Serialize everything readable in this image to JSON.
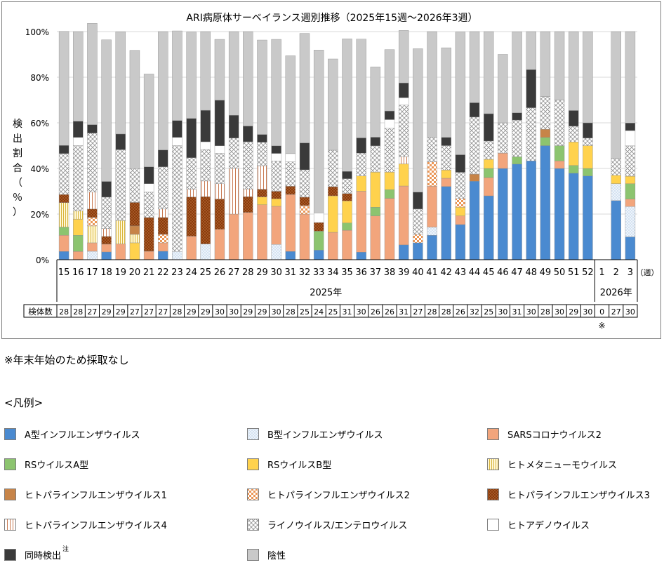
{
  "chart_data": {
    "type": "stacked_bar",
    "title": "ARI病原体サーベイランス週別推移（2025年15週～2026年3週）",
    "ylabel": "検出割合（％）",
    "xunit_label": "（週）",
    "ylim": [
      0,
      100
    ],
    "yticks": [
      "0%",
      "20%",
      "40%",
      "60%",
      "80%",
      "100%"
    ],
    "year_labels": [
      "2025年",
      "2026年"
    ],
    "count_row_label": "検体数",
    "weeks": [
      "15",
      "16",
      "17",
      "18",
      "19",
      "20",
      "21",
      "22",
      "23",
      "24",
      "25",
      "26",
      "27",
      "28",
      "29",
      "30",
      "31",
      "32",
      "33",
      "34",
      "35",
      "36",
      "37",
      "38",
      "39",
      "40",
      "41",
      "42",
      "43",
      "44",
      "45",
      "46",
      "47",
      "48",
      "49",
      "50",
      "51",
      "52",
      "1",
      "2",
      "3"
    ],
    "specimen_counts": [
      "28",
      "28",
      "27",
      "29",
      "29",
      "27",
      "27",
      "27",
      "28",
      "29",
      "29",
      "30",
      "30",
      "29",
      "29",
      "30",
      "28",
      "25",
      "24",
      "25",
      "31",
      "30",
      "26",
      "26",
      "31",
      "27",
      "28",
      "28",
      "26",
      "32",
      "25",
      "30",
      "31",
      "30",
      "28",
      "30",
      "29",
      "30",
      "0",
      "27",
      "30"
    ],
    "footnote_mark": "※",
    "series": [
      {
        "name": "A型インフルエンザウイルス",
        "values": [
          3.6,
          0,
          0,
          3.4,
          0,
          0,
          0,
          3.7,
          0,
          0,
          0,
          0,
          0,
          0,
          0,
          0,
          3.6,
          0,
          4.2,
          0,
          0,
          3.3,
          0,
          0,
          6.5,
          7.4,
          10.7,
          32.1,
          15.4,
          34.4,
          28.0,
          40.0,
          41.9,
          43.3,
          50.0,
          40.0,
          37.9,
          36.7,
          0,
          25.9,
          10.0
        ]
      },
      {
        "name": "B型インフルエンザウイルス",
        "values": [
          0,
          0,
          3.7,
          0,
          0,
          0,
          0,
          0,
          3.6,
          0,
          6.9,
          0,
          0,
          0,
          0,
          6.7,
          0,
          0,
          0,
          0,
          0,
          0,
          0,
          0,
          0,
          0,
          3.6,
          0,
          0,
          0,
          0,
          0,
          0,
          0,
          0,
          0,
          0,
          0,
          0,
          7.4,
          13.3
        ]
      },
      {
        "name": "SARSコロナウイルス2",
        "values": [
          7.1,
          3.6,
          3.7,
          3.4,
          6.9,
          0,
          3.7,
          3.7,
          0,
          10.3,
          0,
          13.3,
          20.0,
          20.7,
          24.1,
          16.7,
          25.0,
          20.0,
          0,
          12.0,
          12.9,
          26.7,
          19.2,
          26.9,
          25.8,
          0,
          17.9,
          3.6,
          3.8,
          0,
          8.0,
          6.7,
          0,
          0,
          0,
          3.3,
          0,
          0,
          0,
          0,
          3.3
        ]
      },
      {
        "name": "RSウイルスA型",
        "values": [
          3.6,
          7.1,
          0,
          0,
          0,
          0,
          0,
          0,
          0,
          0,
          0,
          0,
          0,
          0,
          0,
          0,
          0,
          0,
          8.3,
          0,
          3.2,
          0,
          3.8,
          3.8,
          0,
          0,
          0,
          0,
          0,
          0,
          4.0,
          0,
          3.2,
          0,
          3.6,
          6.7,
          3.4,
          3.3,
          0,
          0,
          6.7
        ]
      },
      {
        "name": "RSウイルスB型",
        "values": [
          0,
          7.1,
          0,
          0,
          0,
          7.4,
          0,
          0,
          0,
          0,
          0,
          0,
          0,
          0,
          3.4,
          3.3,
          0,
          0,
          0,
          16.0,
          9.7,
          6.7,
          15.4,
          7.7,
          9.7,
          0,
          0,
          3.6,
          3.8,
          0,
          4.0,
          0,
          0,
          0,
          0,
          0,
          10.3,
          10.0,
          0,
          3.7,
          3.3
        ]
      },
      {
        "name": "ヒトメタニューモウイルス",
        "values": [
          10.7,
          3.6,
          7.4,
          0,
          10.3,
          3.7,
          0,
          0,
          0,
          0,
          0,
          0,
          0,
          0,
          0,
          0,
          0,
          0,
          0,
          0,
          0,
          0,
          0,
          0,
          0,
          0,
          0,
          0,
          0,
          0,
          0,
          0,
          0,
          0,
          0,
          0,
          0,
          0,
          0,
          0,
          0
        ]
      },
      {
        "name": "ヒトパラインフルエンザウイルス1",
        "values": [
          0,
          0,
          0,
          0,
          0,
          3.7,
          0,
          0,
          0,
          0,
          0,
          0,
          0,
          0,
          0,
          0,
          0,
          0,
          0,
          0,
          0,
          0,
          0,
          0,
          0,
          0,
          0,
          0,
          0,
          3.1,
          0,
          0,
          0,
          0,
          3.6,
          0,
          0,
          0,
          0,
          0,
          0
        ]
      },
      {
        "name": "ヒトパラインフルエンザウイルス2",
        "values": [
          0,
          0,
          3.7,
          0,
          0,
          0,
          0,
          3.7,
          0,
          0,
          0,
          0,
          0,
          0,
          0,
          0,
          0,
          3.7,
          0,
          0,
          0,
          0,
          0,
          0,
          0,
          3.7,
          10.7,
          0,
          3.8,
          0,
          0,
          0,
          0,
          0,
          0,
          0,
          0,
          0,
          0,
          0,
          0
        ]
      },
      {
        "name": "ヒトパラインフルエンザウイルス3",
        "values": [
          3.6,
          0,
          3.7,
          3.4,
          0,
          10.3,
          14.8,
          7.4,
          0,
          17.2,
          20.7,
          13.3,
          0,
          6.9,
          3.4,
          3.3,
          3.6,
          3.7,
          3.8,
          4.0,
          3.2,
          0,
          0,
          0,
          0,
          0,
          0,
          0,
          0,
          0,
          0,
          0,
          0,
          0,
          0,
          0,
          0,
          0,
          0,
          0,
          0
        ]
      },
      {
        "name": "ヒトパラインフルエンザウイルス4",
        "values": [
          0,
          0,
          7.4,
          3.4,
          0,
          0,
          0,
          3.7,
          0,
          3.4,
          6.9,
          6.7,
          20.0,
          3.4,
          10.3,
          0,
          0,
          0,
          0,
          0,
          0,
          0,
          0,
          0,
          3.2,
          0,
          0,
          0,
          0,
          0,
          0,
          0,
          0,
          0,
          0,
          0,
          0,
          0,
          0,
          0,
          0
        ]
      },
      {
        "name": "ライノウイルス/エンテロウイルス",
        "values": [
          17.9,
          28.6,
          25.9,
          13.8,
          31.0,
          14.8,
          11.1,
          18.5,
          46.4,
          13.8,
          13.8,
          13.3,
          13.3,
          20.7,
          10.3,
          13.3,
          10.7,
          12.0,
          0,
          16.0,
          6.5,
          10.0,
          11.5,
          19.2,
          22.6,
          11.1,
          10.7,
          10.7,
          11.5,
          25.0,
          8.0,
          13.3,
          16.1,
          23.3,
          14.3,
          20.0,
          6.9,
          3.3,
          0,
          7.4,
          13.3
        ]
      },
      {
        "name": "ヒトアデノウイルス",
        "values": [
          0,
          3.6,
          0,
          0,
          0,
          0,
          3.7,
          0,
          3.6,
          0,
          3.4,
          3.3,
          0,
          0,
          0,
          3.3,
          3.6,
          0,
          4.2,
          0,
          0,
          0,
          0,
          3.8,
          3.2,
          0,
          0,
          0,
          0,
          0,
          0,
          0,
          0,
          0,
          0,
          0,
          0,
          0,
          0,
          0,
          6.7
        ]
      },
      {
        "name": "同時検出",
        "values": [
          3.6,
          7.1,
          3.7,
          6.9,
          6.9,
          0,
          7.4,
          7.4,
          7.4,
          17.2,
          13.8,
          20.0,
          10.0,
          6.9,
          3.4,
          3.3,
          0,
          11.8,
          0,
          0,
          3.2,
          6.7,
          3.8,
          3.8,
          6.5,
          7.4,
          0,
          3.6,
          7.7,
          6.3,
          12.0,
          0,
          3.2,
          16.7,
          0,
          0,
          6.9,
          6.7,
          0,
          0,
          3.3
        ]
      },
      {
        "name": "陰性",
        "values": [
          50.0,
          39.3,
          44.4,
          62.1,
          44.8,
          51.9,
          40.7,
          51.9,
          39.3,
          37.9,
          34.5,
          26.7,
          36.7,
          41.4,
          41.4,
          46.7,
          42.9,
          48.0,
          71.4,
          40.0,
          58.1,
          43.3,
          30.8,
          26.9,
          23.0,
          62.9,
          46.4,
          39.3,
          53.8,
          31.2,
          36.0,
          30.0,
          35.5,
          16.7,
          28.5,
          30.0,
          34.6,
          40.0,
          0,
          55.6,
          40.1
        ]
      }
    ]
  },
  "note_text": "※年末年始のため採取なし",
  "legend_heading": "<凡例>",
  "legend_footnote": "注"
}
